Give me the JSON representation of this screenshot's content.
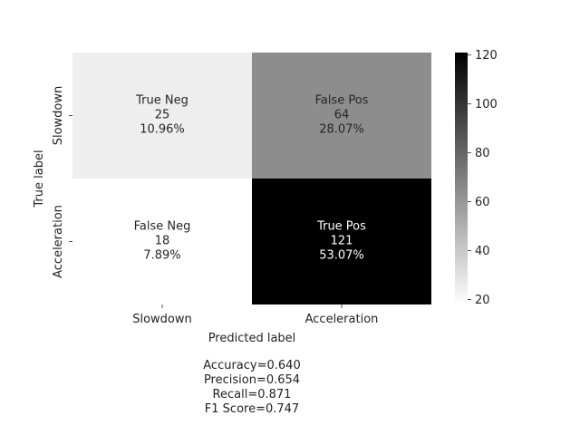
{
  "chart_data": {
    "type": "heatmap",
    "xlabel": "Predicted label",
    "ylabel": "True label",
    "x_categories": [
      "Slowdown",
      "Acceleration"
    ],
    "y_categories": [
      "Slowdown",
      "Acceleration"
    ],
    "cells": [
      {
        "row": 0,
        "col": 0,
        "label": "True Neg",
        "value": 25,
        "percent": "10.96%"
      },
      {
        "row": 0,
        "col": 1,
        "label": "False Pos",
        "value": 64,
        "percent": "28.07%"
      },
      {
        "row": 1,
        "col": 0,
        "label": "False Neg",
        "value": 18,
        "percent": "7.89%"
      },
      {
        "row": 1,
        "col": 1,
        "label": "True Pos",
        "value": 121,
        "percent": "53.07%"
      }
    ],
    "colorbar": {
      "min": 18,
      "max": 121,
      "ticks": [
        20,
        40,
        60,
        80,
        100,
        120
      ],
      "colormap": "binary",
      "colors": [
        "#ffffff",
        "#000000"
      ]
    },
    "grid": false
  },
  "metrics": [
    "Accuracy=0.640",
    "Precision=0.654",
    "Recall=0.871",
    "F1 Score=0.747"
  ]
}
